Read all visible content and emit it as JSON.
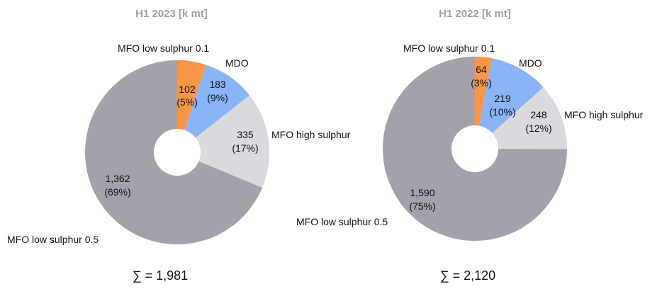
{
  "chart_data": [
    {
      "type": "pie",
      "title": "H1 2023 [k mt]",
      "total_label": "∑ = 1,981",
      "slices": [
        {
          "name": "MFO low sulphur 0.1",
          "value": 102,
          "value_label": "102",
          "pct_label": "(5%)",
          "color": "#F79646"
        },
        {
          "name": "MDO",
          "value": 183,
          "value_label": "183",
          "pct_label": "(9%)",
          "color": "#8AB4F8"
        },
        {
          "name": "MFO high sulphur",
          "value": 335,
          "value_label": "335",
          "pct_label": "(17%)",
          "color": "#DADADE"
        },
        {
          "name": "MFO low sulphur 0.5",
          "value": 1362,
          "value_label": "1,362",
          "pct_label": "(69%)",
          "color": "#A3A2AB"
        }
      ]
    },
    {
      "type": "pie",
      "title": "H1 2022 [k mt]",
      "total_label": "∑ = 2,120",
      "slices": [
        {
          "name": "MFO low sulphur 0.1",
          "value": 64,
          "value_label": "64",
          "pct_label": "(3%)",
          "color": "#F79646"
        },
        {
          "name": "MDO",
          "value": 219,
          "value_label": "219",
          "pct_label": "(10%)",
          "color": "#8AB4F8"
        },
        {
          "name": "MFO high sulphur",
          "value": 248,
          "value_label": "248",
          "pct_label": "(12%)",
          "color": "#DADADE"
        },
        {
          "name": "MFO low sulphur 0.5",
          "value": 1590,
          "value_label": "1,590",
          "pct_label": "(75%)",
          "color": "#A3A2AB"
        }
      ]
    }
  ]
}
